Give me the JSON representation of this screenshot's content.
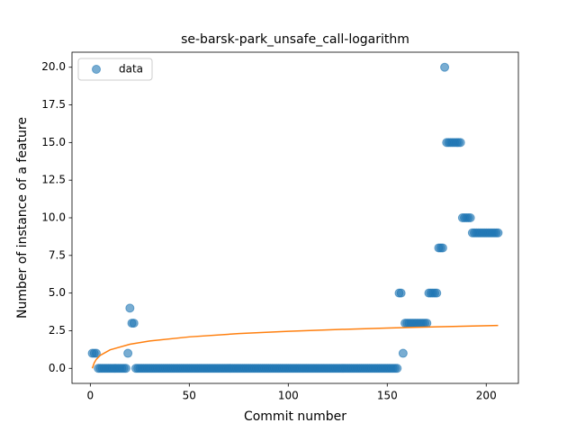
{
  "chart_data": {
    "type": "scatter",
    "title": "se-barsk-park_unsafe_call-logarithm",
    "xlabel": "Commit number",
    "ylabel": "Number of instance of a feature",
    "xlim": [
      -9.25,
      216.25
    ],
    "ylim": [
      -1,
      21
    ],
    "xticks": [
      0,
      50,
      100,
      150,
      200
    ],
    "yticks": [
      {
        "value": 0,
        "label": "0.0"
      },
      {
        "value": 2.5,
        "label": "2.5"
      },
      {
        "value": 5,
        "label": "5.0"
      },
      {
        "value": 7.5,
        "label": "7.5"
      },
      {
        "value": 10,
        "label": "10.0"
      },
      {
        "value": 12.5,
        "label": "12.5"
      },
      {
        "value": 15,
        "label": "15.0"
      },
      {
        "value": 17.5,
        "label": "17.5"
      },
      {
        "value": 20,
        "label": "20.0"
      }
    ],
    "legend": "upper left",
    "series": [
      {
        "name": "data",
        "color": "#1f77b4",
        "x": [
          1,
          2,
          3,
          4,
          5,
          6,
          7,
          8,
          9,
          10,
          11,
          12,
          13,
          14,
          15,
          16,
          17,
          18,
          19,
          20,
          21,
          22,
          23,
          24,
          25,
          26,
          27,
          28,
          29,
          30,
          31,
          32,
          33,
          34,
          35,
          36,
          37,
          38,
          39,
          40,
          41,
          42,
          43,
          44,
          45,
          46,
          47,
          48,
          49,
          50,
          51,
          52,
          53,
          54,
          55,
          56,
          57,
          58,
          59,
          60,
          61,
          62,
          63,
          64,
          65,
          66,
          67,
          68,
          69,
          70,
          71,
          72,
          73,
          74,
          75,
          76,
          77,
          78,
          79,
          80,
          81,
          82,
          83,
          84,
          85,
          86,
          87,
          88,
          89,
          90,
          91,
          92,
          93,
          94,
          95,
          96,
          97,
          98,
          99,
          100,
          101,
          102,
          103,
          104,
          105,
          106,
          107,
          108,
          109,
          110,
          111,
          112,
          113,
          114,
          115,
          116,
          117,
          118,
          119,
          120,
          121,
          122,
          123,
          124,
          125,
          126,
          127,
          128,
          129,
          130,
          131,
          132,
          133,
          134,
          135,
          136,
          137,
          138,
          139,
          140,
          141,
          142,
          143,
          144,
          145,
          146,
          147,
          148,
          149,
          150,
          151,
          152,
          153,
          154,
          155,
          156,
          157,
          158,
          159,
          160,
          161,
          162,
          163,
          164,
          165,
          166,
          167,
          168,
          169,
          170,
          171,
          172,
          173,
          174,
          175,
          176,
          177,
          178,
          179,
          180,
          181,
          182,
          183,
          184,
          185,
          186,
          187,
          188,
          189,
          190,
          191,
          192,
          193,
          194,
          195,
          196,
          197,
          198,
          199,
          200,
          201,
          202,
          203,
          204,
          205,
          206
        ],
        "values": [
          1,
          1,
          1,
          0,
          0,
          0,
          0,
          0,
          0,
          0,
          0,
          0,
          0,
          0,
          0,
          0,
          0,
          0,
          1,
          4,
          3,
          3,
          0,
          0,
          0,
          0,
          0,
          0,
          0,
          0,
          0,
          0,
          0,
          0,
          0,
          0,
          0,
          0,
          0,
          0,
          0,
          0,
          0,
          0,
          0,
          0,
          0,
          0,
          0,
          0,
          0,
          0,
          0,
          0,
          0,
          0,
          0,
          0,
          0,
          0,
          0,
          0,
          0,
          0,
          0,
          0,
          0,
          0,
          0,
          0,
          0,
          0,
          0,
          0,
          0,
          0,
          0,
          0,
          0,
          0,
          0,
          0,
          0,
          0,
          0,
          0,
          0,
          0,
          0,
          0,
          0,
          0,
          0,
          0,
          0,
          0,
          0,
          0,
          0,
          0,
          0,
          0,
          0,
          0,
          0,
          0,
          0,
          0,
          0,
          0,
          0,
          0,
          0,
          0,
          0,
          0,
          0,
          0,
          0,
          0,
          0,
          0,
          0,
          0,
          0,
          0,
          0,
          0,
          0,
          0,
          0,
          0,
          0,
          0,
          0,
          0,
          0,
          0,
          0,
          0,
          0,
          0,
          0,
          0,
          0,
          0,
          0,
          0,
          0,
          0,
          0,
          0,
          0,
          0,
          0,
          5,
          5,
          1,
          3,
          3,
          3,
          3,
          3,
          3,
          3,
          3,
          3,
          3,
          3,
          3,
          5,
          5,
          5,
          5,
          5,
          8,
          8,
          8,
          20,
          15,
          15,
          15,
          15,
          15,
          15,
          15,
          15,
          10,
          10,
          10,
          10,
          10,
          9,
          9,
          9,
          9,
          9,
          9,
          9,
          9,
          9,
          9,
          9,
          9,
          9,
          9
        ]
      }
    ],
    "fit": {
      "color": "#ff7f0e",
      "x": [
        1,
        2,
        3,
        5,
        10,
        20,
        30,
        50,
        75,
        100,
        125,
        150,
        175,
        206
      ],
      "values": [
        0,
        0.37,
        0.59,
        0.86,
        1.23,
        1.6,
        1.82,
        2.09,
        2.31,
        2.46,
        2.58,
        2.68,
        2.76,
        2.85
      ]
    }
  }
}
